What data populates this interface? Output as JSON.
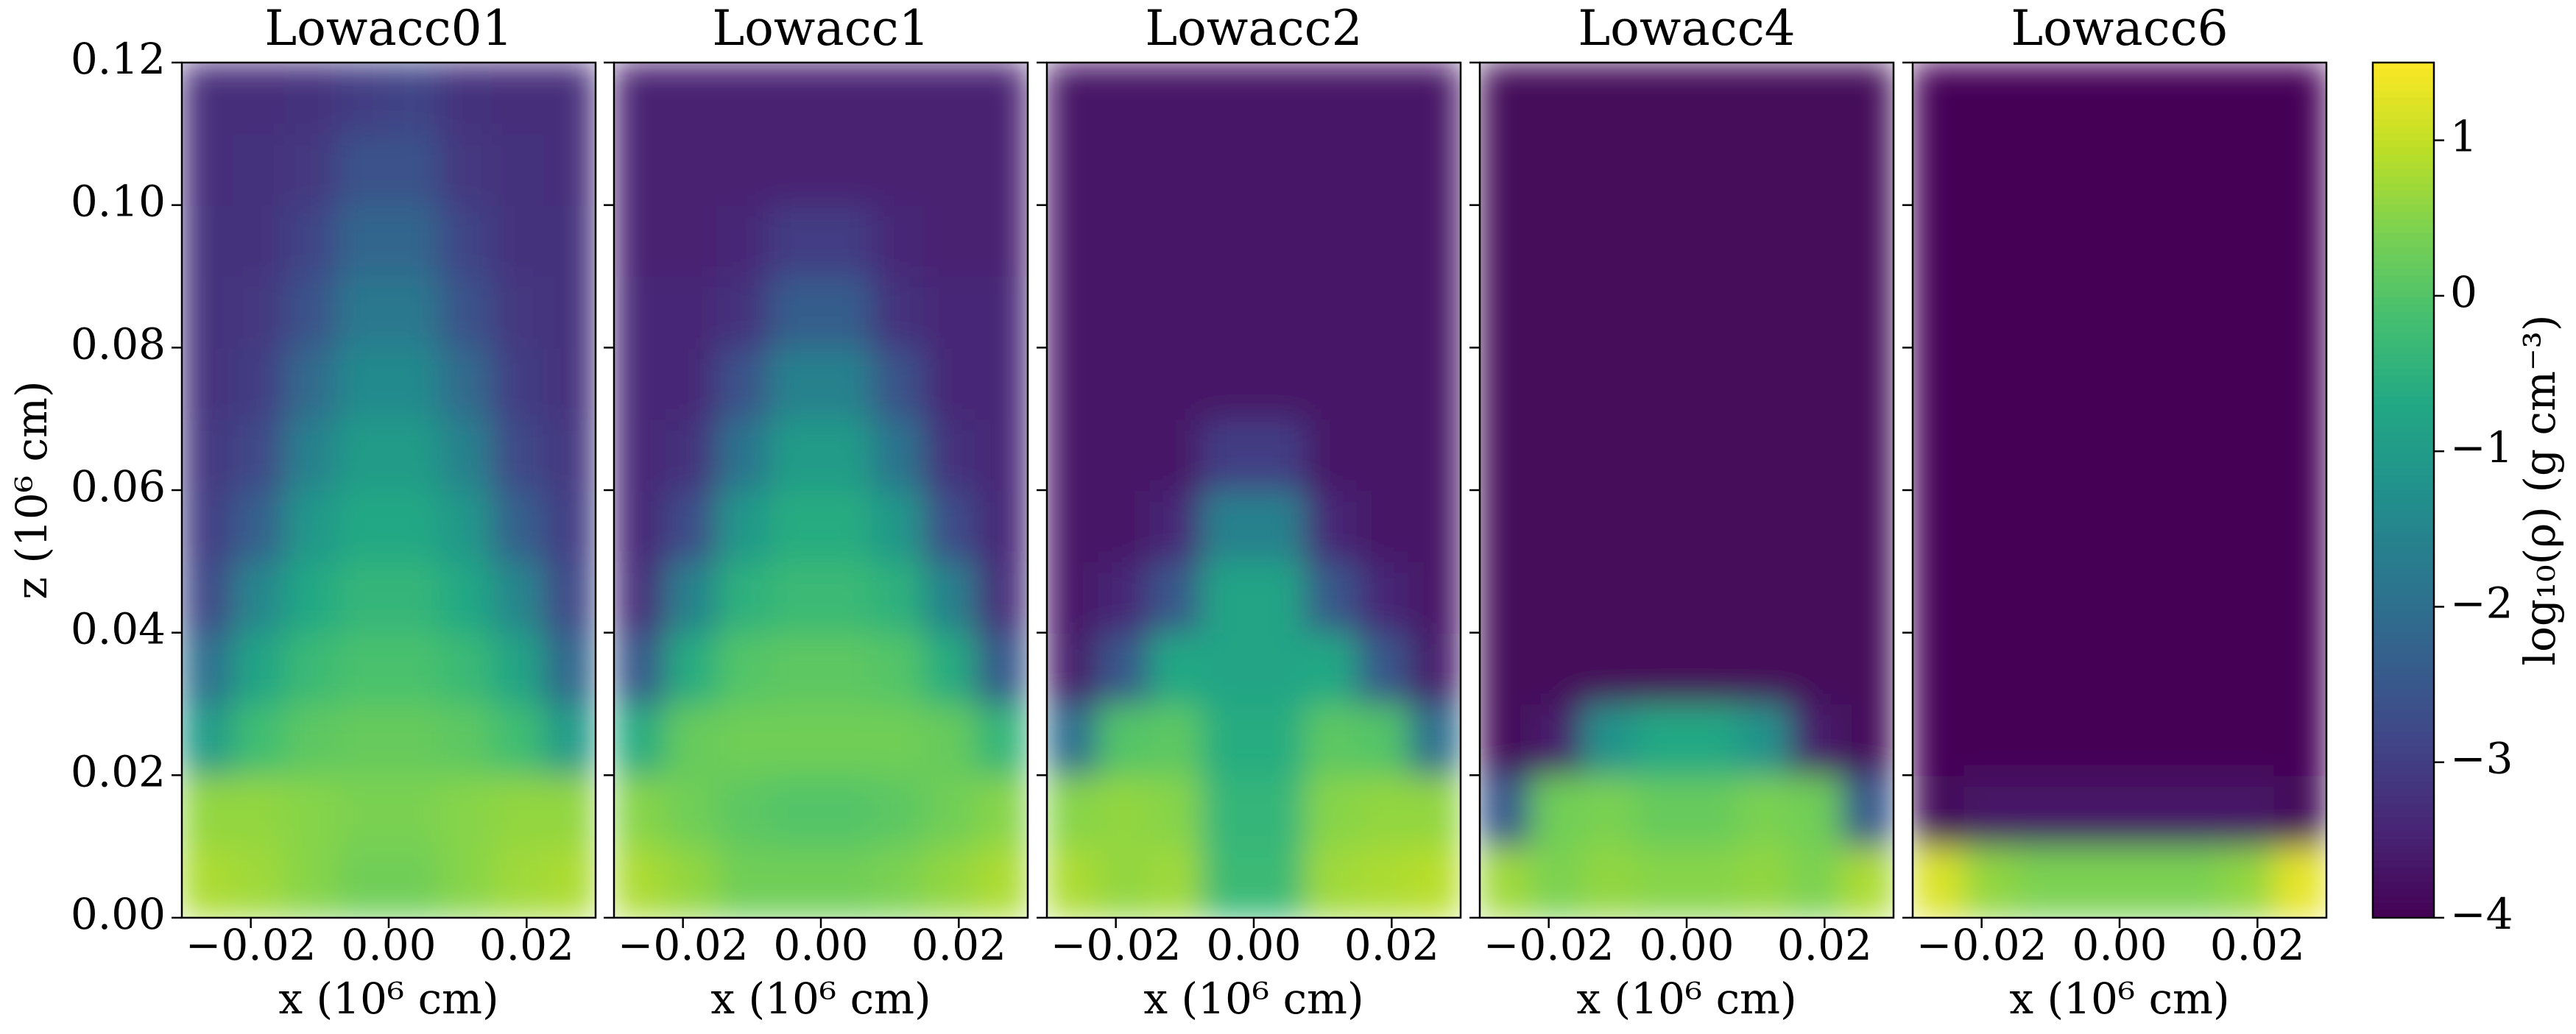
{
  "chart_data": {
    "type": "heatmap",
    "xlabel": "x (10⁶ cm)",
    "ylabel": "z (10⁶ cm)",
    "xlim": [
      -0.03,
      0.03
    ],
    "ylim": [
      0,
      0.12
    ],
    "xticks": [
      {
        "value": -0.02,
        "label": "−0.02"
      },
      {
        "value": 0,
        "label": "0.00"
      },
      {
        "value": 0.02,
        "label": "0.02"
      }
    ],
    "yticks": [
      {
        "value": 0,
        "label": "0.00"
      },
      {
        "value": 0.02,
        "label": "0.02"
      },
      {
        "value": 0.04,
        "label": "0.04"
      },
      {
        "value": 0.06,
        "label": "0.06"
      },
      {
        "value": 0.08,
        "label": "0.08"
      },
      {
        "value": 0.1,
        "label": "0.10"
      },
      {
        "value": 0.12,
        "label": "0.12"
      }
    ],
    "colorbar": {
      "label": "log₁₀(ρ) (g cm⁻³)",
      "lim": [
        -4,
        1.5
      ],
      "colormap": "viridis",
      "ticks": [
        {
          "value": 1,
          "label": "1"
        },
        {
          "value": 0,
          "label": "0"
        },
        {
          "value": -1,
          "label": "−1"
        },
        {
          "value": -2,
          "label": "−2"
        },
        {
          "value": -3,
          "label": "−3"
        },
        {
          "value": -4,
          "label": "−4"
        }
      ]
    },
    "panels": [
      {
        "title": "Lowacc01",
        "z": [
          [
            0.8,
            0.7,
            0.5,
            0.3,
            0.3,
            0.5,
            0.7,
            0.8
          ],
          [
            0.6,
            0.6,
            0.5,
            0.4,
            0.4,
            0.5,
            0.6,
            0.6
          ],
          [
            -1.0,
            -0.2,
            0.1,
            0.2,
            0.2,
            0.1,
            -0.2,
            -1.0
          ],
          [
            -2.0,
            -0.8,
            -0.3,
            -0.1,
            -0.1,
            -0.3,
            -0.8,
            -2.2
          ],
          [
            -2.8,
            -1.5,
            -0.7,
            -0.4,
            -0.4,
            -0.7,
            -1.5,
            -2.8
          ],
          [
            -3.0,
            -2.3,
            -1.1,
            -0.7,
            -0.7,
            -1.1,
            -2.3,
            -3.0
          ],
          [
            -3.1,
            -2.8,
            -1.6,
            -1.0,
            -1.0,
            -1.6,
            -2.8,
            -3.1
          ],
          [
            -3.2,
            -3.0,
            -2.1,
            -1.4,
            -1.4,
            -2.1,
            -3.0,
            -3.2
          ],
          [
            -3.2,
            -3.1,
            -2.6,
            -1.8,
            -1.8,
            -2.6,
            -3.1,
            -3.2
          ],
          [
            -3.2,
            -3.2,
            -2.9,
            -2.2,
            -2.2,
            -2.9,
            -3.2,
            -3.2
          ],
          [
            -3.3,
            -3.2,
            -3.1,
            -2.6,
            -2.6,
            -3.1,
            -3.2,
            -3.3
          ],
          [
            -3.3,
            -3.3,
            -3.2,
            -3.0,
            -2.9,
            -3.2,
            -3.3,
            -3.3
          ]
        ]
      },
      {
        "title": "Lowacc1",
        "z": [
          [
            0.8,
            0.6,
            0.3,
            0.3,
            0.3,
            0.4,
            0.6,
            0.8
          ],
          [
            0.5,
            0.3,
            0.1,
            0.0,
            0.0,
            0.1,
            0.3,
            0.5
          ],
          [
            -0.6,
            0.2,
            0.3,
            0.3,
            0.3,
            0.3,
            0.2,
            -0.4
          ],
          [
            -2.5,
            -0.6,
            0.0,
            0.1,
            0.1,
            0.0,
            -0.6,
            -2.5
          ],
          [
            -3.3,
            -1.6,
            -0.5,
            -0.3,
            -0.3,
            -0.5,
            -1.6,
            -3.3
          ],
          [
            -3.4,
            -2.7,
            -1.1,
            -0.6,
            -0.6,
            -1.1,
            -2.7,
            -3.4
          ],
          [
            -3.4,
            -3.2,
            -1.9,
            -1.0,
            -1.0,
            -1.9,
            -3.2,
            -3.4
          ],
          [
            -3.4,
            -3.4,
            -2.6,
            -1.6,
            -1.6,
            -2.6,
            -3.4,
            -3.4
          ],
          [
            -3.4,
            -3.4,
            -3.2,
            -2.4,
            -2.4,
            -3.2,
            -3.4,
            -3.4
          ],
          [
            -3.5,
            -3.5,
            -3.4,
            -3.0,
            -3.0,
            -3.4,
            -3.5,
            -3.5
          ],
          [
            -3.5,
            -3.5,
            -3.5,
            -3.5,
            -3.5,
            -3.5,
            -3.5,
            -3.5
          ],
          [
            -3.5,
            -3.5,
            -3.5,
            -3.5,
            -3.5,
            -3.5,
            -3.5,
            -3.5
          ]
        ]
      },
      {
        "title": "Lowacc2",
        "z": [
          [
            0.8,
            0.6,
            0.7,
            -0.3,
            -0.3,
            0.7,
            0.8,
            0.9
          ],
          [
            0.5,
            0.6,
            0.5,
            -0.4,
            -0.4,
            0.5,
            0.6,
            0.6
          ],
          [
            -2.0,
            0.0,
            0.1,
            -0.6,
            -0.6,
            0.1,
            0.0,
            -2.0
          ],
          [
            -3.6,
            -2.5,
            -0.7,
            -0.8,
            -0.8,
            -0.7,
            -2.5,
            -3.6
          ],
          [
            -3.7,
            -3.4,
            -2.5,
            -0.8,
            -0.8,
            -2.5,
            -3.4,
            -3.7
          ],
          [
            -3.7,
            -3.7,
            -3.4,
            -1.6,
            -1.6,
            -3.4,
            -3.7,
            -3.7
          ],
          [
            -3.7,
            -3.7,
            -3.7,
            -3.0,
            -3.0,
            -3.7,
            -3.7,
            -3.7
          ],
          [
            -3.7,
            -3.7,
            -3.7,
            -3.7,
            -3.7,
            -3.7,
            -3.7,
            -3.7
          ],
          [
            -3.7,
            -3.7,
            -3.7,
            -3.7,
            -3.7,
            -3.7,
            -3.7,
            -3.7
          ],
          [
            -3.7,
            -3.7,
            -3.7,
            -3.7,
            -3.7,
            -3.7,
            -3.7,
            -3.7
          ],
          [
            -3.7,
            -3.7,
            -3.7,
            -3.7,
            -3.7,
            -3.7,
            -3.7,
            -3.7
          ],
          [
            -3.7,
            -3.7,
            -3.7,
            -3.7,
            -3.7,
            -3.7,
            -3.7,
            -3.7
          ]
        ]
      },
      {
        "title": "Lowacc4",
        "z": [
          [
            0.7,
            0.4,
            0.6,
            0.5,
            0.5,
            0.6,
            0.4,
            0.8
          ],
          [
            -2.5,
            0.3,
            0.4,
            0.2,
            0.2,
            0.4,
            0.3,
            -2.5
          ],
          [
            -3.9,
            -3.6,
            -1.2,
            -0.7,
            -0.7,
            -1.2,
            -3.6,
            -3.9
          ],
          [
            -3.9,
            -3.9,
            -3.9,
            -3.9,
            -3.9,
            -3.9,
            -3.9,
            -3.9
          ],
          [
            -3.9,
            -3.9,
            -3.9,
            -3.9,
            -3.9,
            -3.9,
            -3.9,
            -3.9
          ],
          [
            -3.9,
            -3.9,
            -3.9,
            -3.9,
            -3.9,
            -3.9,
            -3.9,
            -3.9
          ],
          [
            -3.9,
            -3.9,
            -3.9,
            -3.9,
            -3.9,
            -3.9,
            -3.9,
            -3.9
          ],
          [
            -3.9,
            -3.9,
            -3.9,
            -3.9,
            -3.9,
            -3.9,
            -3.9,
            -3.9
          ],
          [
            -3.9,
            -3.9,
            -3.9,
            -3.9,
            -3.9,
            -3.9,
            -3.9,
            -3.9
          ],
          [
            -3.9,
            -3.9,
            -3.9,
            -3.9,
            -3.9,
            -3.9,
            -3.9,
            -3.9
          ],
          [
            -3.9,
            -3.9,
            -3.9,
            -3.9,
            -3.9,
            -3.9,
            -3.9,
            -3.9
          ],
          [
            -3.9,
            -3.9,
            -3.9,
            -3.9,
            -3.9,
            -3.9,
            -3.9,
            -3.9
          ]
        ]
      },
      {
        "title": "Lowacc6",
        "z": [
          [
            1.2,
            0.6,
            0.4,
            0.4,
            0.4,
            0.4,
            0.6,
            1.3
          ],
          [
            -3.9,
            -3.7,
            -3.7,
            -3.7,
            -3.7,
            -3.7,
            -3.7,
            -3.9
          ],
          [
            -3.95,
            -3.95,
            -3.95,
            -3.95,
            -3.95,
            -3.95,
            -3.95,
            -3.95
          ],
          [
            -3.95,
            -3.95,
            -3.95,
            -3.95,
            -3.95,
            -3.95,
            -3.95,
            -3.95
          ],
          [
            -3.95,
            -3.95,
            -3.95,
            -3.95,
            -3.95,
            -3.95,
            -3.95,
            -3.95
          ],
          [
            -3.95,
            -3.95,
            -3.95,
            -3.95,
            -3.95,
            -3.95,
            -3.95,
            -3.95
          ],
          [
            -3.95,
            -3.95,
            -3.95,
            -3.95,
            -3.95,
            -3.95,
            -3.95,
            -3.95
          ],
          [
            -3.95,
            -3.95,
            -3.95,
            -3.95,
            -3.95,
            -3.95,
            -3.95,
            -3.95
          ],
          [
            -3.95,
            -3.95,
            -3.95,
            -3.95,
            -3.95,
            -3.95,
            -3.95,
            -3.95
          ],
          [
            -3.95,
            -3.95,
            -3.95,
            -3.95,
            -3.95,
            -3.95,
            -3.95,
            -3.95
          ],
          [
            -3.95,
            -3.95,
            -3.95,
            -3.95,
            -3.95,
            -3.95,
            -3.95,
            -3.95
          ],
          [
            -3.95,
            -3.95,
            -3.95,
            -3.95,
            -3.95,
            -3.95,
            -3.95,
            -3.95
          ]
        ]
      }
    ]
  }
}
